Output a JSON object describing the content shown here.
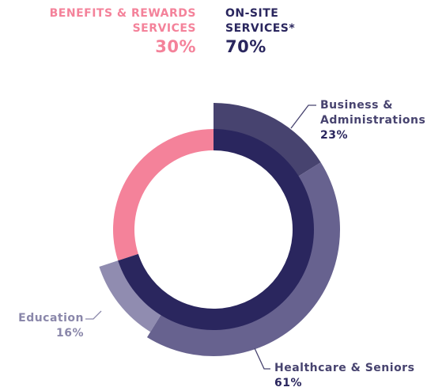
{
  "chart_data": {
    "type": "nested-donut",
    "inner": {
      "categories": [
        "BENEFITS & REWARDS SERVICES",
        "ON-SITE SERVICES*"
      ],
      "values": [
        30,
        70
      ],
      "value_labels": [
        "30%",
        "70%"
      ],
      "colors": [
        "#f4829a",
        "#2a265e"
      ]
    },
    "outer": {
      "categories": [
        "Business & Administrations",
        "Healthcare & Seniors",
        "Education"
      ],
      "values": [
        23,
        61,
        16
      ],
      "value_labels": [
        "23%",
        "61%",
        "16%"
      ],
      "colors": [
        "#47436f",
        "#67628f",
        "#908cb0"
      ]
    }
  }
}
